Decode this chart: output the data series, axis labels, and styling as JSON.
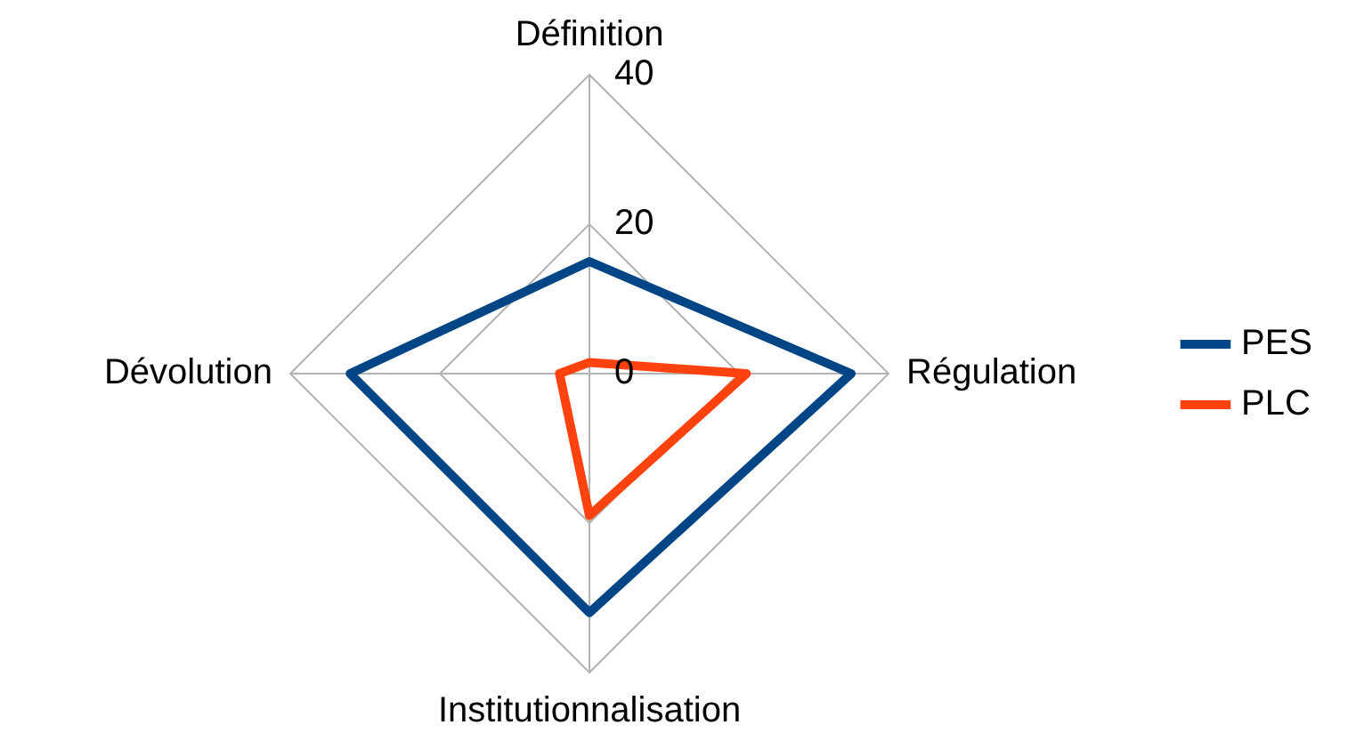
{
  "chart_data": {
    "type": "radar",
    "categories": [
      "Définition",
      "Régulation",
      "Institutionnalisation",
      "Dévolution"
    ],
    "series": [
      {
        "name": "PES",
        "color": "#004586",
        "values": [
          15,
          35,
          32,
          32
        ]
      },
      {
        "name": "PLC",
        "color": "#ff420e",
        "values": [
          1.5,
          21,
          19,
          4
        ]
      }
    ],
    "ylim": [
      0,
      40
    ],
    "yticks": [
      0,
      20,
      40
    ],
    "grid": true,
    "legend": "right",
    "marker": "none",
    "line_style": "solid"
  }
}
